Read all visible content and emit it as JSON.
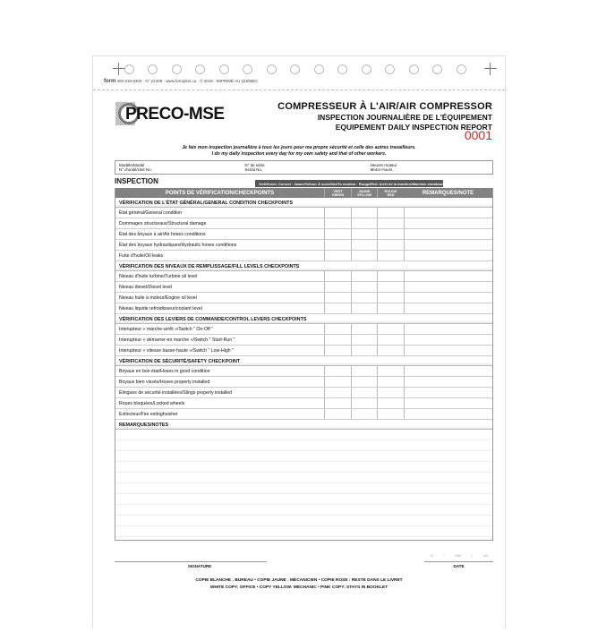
{
  "print_info": {
    "brand": "form",
    "text": "450 818-9300 · N° 22409 · www.formplus.ca · © 2018 · IMPRIMÉ AU QUÉBEC"
  },
  "logo": "PRECO-MSE",
  "header": {
    "title": "COMPRESSEUR À L'AIR/AIR COMPRESSOR",
    "subtitle_fr": "INSPECTION JOURNALIÈRE DE L'ÉQUIPEMENT",
    "subtitle_en": "EQUIPEMENT DAILY INSPECTION REPORT",
    "serial": "0001",
    "serial_color": "#d2232a"
  },
  "pledge": {
    "fr": "Je fais mon inspection journalière à tous les jours pour ma propre sécurité et celle des autres travailleurs.",
    "en": "I do my daily inspection every day for my own safety and that of other workers."
  },
  "info_fields": [
    {
      "fr": "Modèle/Model",
      "en": "N° d'unité/Unit No."
    },
    {
      "fr": "N° de série",
      "en": "Serial No."
    },
    {
      "fr": "Heures moteur",
      "en": "Motor Hours"
    }
  ],
  "inspection_label": "INSPECTION",
  "legend": "Vert/Green: Correct · Jaune/Yellow: À surveiller/To monitor · Rouge/Red: Arrêt de la machine/Machine shutdown",
  "columns": {
    "checkpoints": "POINTS DE VÉRIFICATION/CHECKPOINTS",
    "green": [
      "VERT",
      "GREEN"
    ],
    "yellow": [
      "JAUNE",
      "YELLOW"
    ],
    "red": [
      "ROUGE",
      "RED"
    ],
    "remarks": "REMARQUES/NOTE"
  },
  "sections": [
    {
      "title": "VÉRIFICATION DE L'ÉTAT GÉNÉRAL/GENERAL CONDITION CHECKPOINTS",
      "items": [
        "État général/General condition",
        "Dommages structuraux/Structural damage",
        "État des boyaux à air/Air hoses conditions",
        "État des boyaux hydrauliques/Hydraulic hoses conditions",
        "Fuite d'huile/Oil leaks"
      ]
    },
    {
      "title": "VÉRIFICATION DES NIVEAUX DE REMPLISSAGE/FILL LEVELS CHECKPOINTS",
      "items": [
        "Niveau d'huile turbine/Turbine oil level",
        "Niveau diesel/Diesel level",
        "Niveau huile à moteur/Engine oil level",
        "Niveau liquide refroidisseur/coolant level"
      ]
    },
    {
      "title": "VÉRIFICATION DES LEVIERS DE COMMANDE/CONTROL LEVERS CHECKPOINTS",
      "items": [
        "Interupteur « marche-arrêt »/Switch \" On-Off \"",
        "Interupteur « démarrer-en marche »/Switch \" Start-Run \"",
        "Interupteur « vitesse basse-haute »/Switch \" Low-High \""
      ]
    },
    {
      "title": "VÉRIFICATION DE SÉCURITÉ/SAFETY CHECKPOINT",
      "items": [
        "Boyaux en bon état/Hoses in good condition",
        "Boyaux bien vissés/Hoses properly installed",
        "Élingues de sécurité installées/Slings properly installed",
        "Roues bloquées/Locked wheels",
        "Extincteur/Fire extinghuisher"
      ]
    }
  ],
  "notes_label": "REMARQUES/NOTES",
  "signature_label": "SIGNATURE",
  "date": {
    "label": "DATE",
    "placeholders": [
      "JJ",
      "MM",
      "AA"
    ]
  },
  "copies": {
    "fr": "COPIE BLANCHE : BUREAU  •  COPIE JAUNE : MÉCANICIEN  •  COPIE ROSE : RESTE DANS LE LIVRET",
    "en": "WHITE COPY: OFFICE  •  COPY YELLOW: MECHANIC  •  PINK COPY: STAYS IN BOOKLET"
  }
}
